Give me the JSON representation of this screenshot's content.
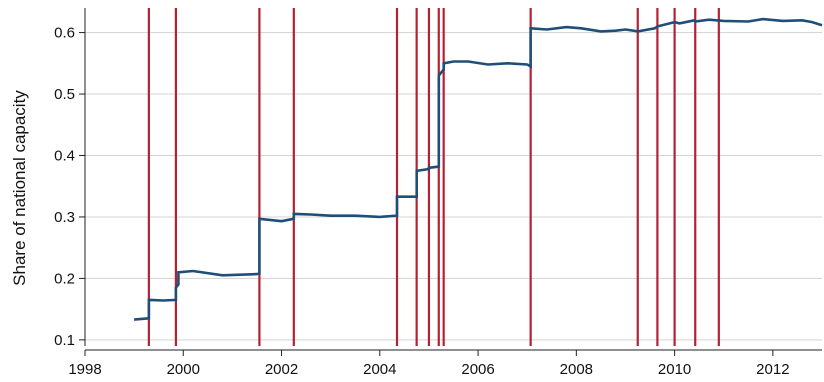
{
  "colors": {
    "series": "#1f4e79",
    "events": "#b22234",
    "grid": "#d3d3d3",
    "axis": "#222222"
  },
  "chart_data": {
    "type": "line",
    "title": "",
    "xlabel": "",
    "ylabel": "Share of national capacity",
    "xlim": [
      1998,
      2013
    ],
    "ylim": [
      0.09,
      0.64
    ],
    "x_ticks": [
      1998,
      2000,
      2002,
      2004,
      2006,
      2008,
      2010,
      2012
    ],
    "x_tick_labels": [
      "1998",
      "2000",
      "2002",
      "2004",
      "2006",
      "2008",
      "2010",
      "2012"
    ],
    "y_ticks": [
      0.1,
      0.2,
      0.3,
      0.4,
      0.5,
      0.6
    ],
    "y_tick_labels": [
      "0.1",
      "0.2",
      "0.3",
      "0.4",
      "0.5",
      "0.6"
    ],
    "grid": "horizontal",
    "legend": "none",
    "event_lines": [
      1999.3,
      1999.85,
      2001.55,
      2002.25,
      2004.35,
      2004.75,
      2005.0,
      2005.2,
      2005.3,
      2007.07,
      2009.25,
      2009.65,
      2010.0,
      2010.42,
      2010.9
    ],
    "series": [
      {
        "x": [
          1999.0,
          1999.3,
          1999.3,
          1999.6,
          1999.85,
          1999.85,
          1999.9,
          1999.9,
          2000.2,
          2000.8,
          2001.5,
          2001.55,
          2001.55,
          2002.0,
          2002.25,
          2002.25,
          2002.6,
          2003.0,
          2003.5,
          2004.0,
          2004.35,
          2004.35,
          2004.75,
          2004.75,
          2005.0,
          2005.0,
          2005.2,
          2005.2,
          2005.3,
          2005.3,
          2005.5,
          2005.8,
          2006.2,
          2006.6,
          2007.0,
          2007.07,
          2007.07,
          2007.4,
          2007.8,
          2008.1,
          2008.5,
          2008.8,
          2009.0,
          2009.25,
          2009.6,
          2009.65,
          2009.9,
          2010.0,
          2010.1,
          2010.4,
          2010.42,
          2010.7,
          2011.0,
          2011.5,
          2011.8,
          2012.2,
          2012.6,
          2012.8,
          2013.0
        ],
        "y": [
          0.133,
          0.135,
          0.165,
          0.164,
          0.165,
          0.185,
          0.19,
          0.21,
          0.212,
          0.205,
          0.207,
          0.208,
          0.297,
          0.293,
          0.297,
          0.305,
          0.304,
          0.302,
          0.302,
          0.3,
          0.302,
          0.333,
          0.333,
          0.375,
          0.378,
          0.38,
          0.382,
          0.53,
          0.54,
          0.55,
          0.553,
          0.553,
          0.548,
          0.55,
          0.548,
          0.545,
          0.607,
          0.605,
          0.609,
          0.607,
          0.602,
          0.603,
          0.605,
          0.602,
          0.607,
          0.61,
          0.615,
          0.617,
          0.615,
          0.62,
          0.618,
          0.621,
          0.619,
          0.618,
          0.622,
          0.619,
          0.62,
          0.617,
          0.612
        ]
      }
    ]
  }
}
